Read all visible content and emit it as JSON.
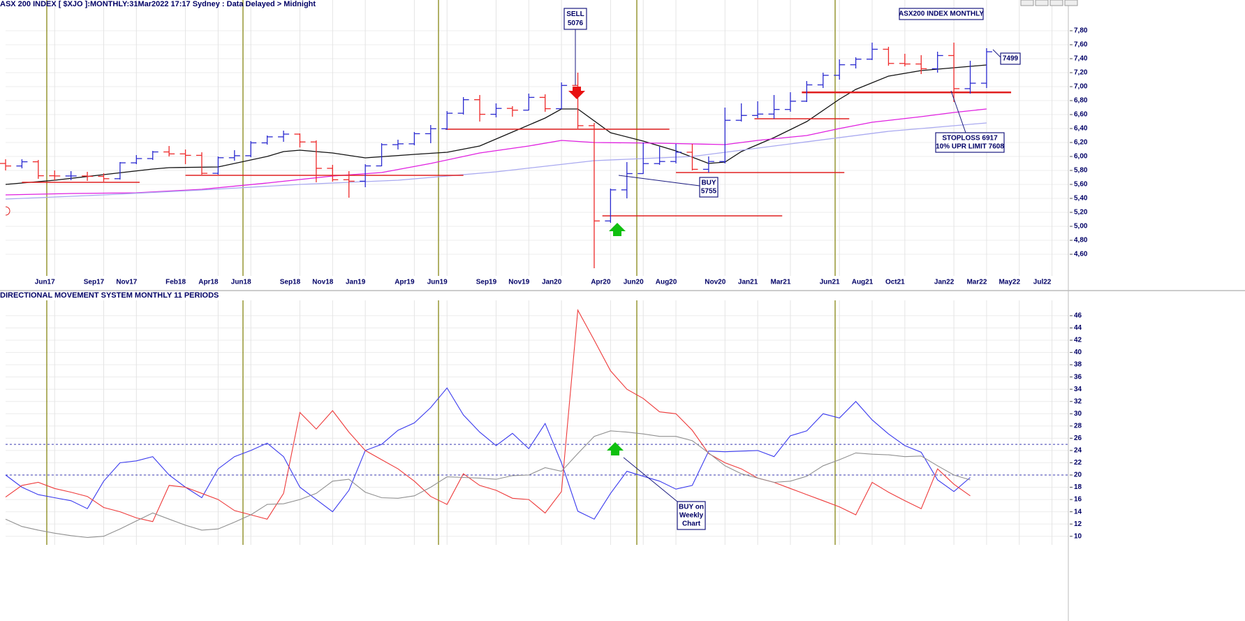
{
  "chart_data": [
    {
      "type": "ohlc",
      "title": "ASX 200 INDEX [ $XJO ]:MONTHLY:31Mar2022 17:17 Sydney : Data Delayed > Midnight",
      "up_color": "#2b2bd0",
      "down_color": "#ee2a2a",
      "open": [
        5900,
        5864,
        5924,
        5724,
        5721,
        5721,
        5715,
        5682,
        5909,
        5970,
        6065,
        6037,
        6016,
        5759,
        5982,
        6011,
        6195,
        6281,
        6320,
        6208,
        5830,
        5667,
        5646,
        5865,
        6169,
        6181,
        6326,
        6397,
        6619,
        6813,
        6604,
        6688,
        6663,
        6846,
        6684,
        7017,
        6441,
        5077,
        5522,
        5755,
        5898,
        5928,
        6061,
        5816,
        5928,
        6518,
        6587,
        6607,
        6673,
        6791,
        7025,
        7162,
        7313,
        7393,
        7535,
        7332,
        7324,
        7256,
        7445,
        6971,
        7049
      ],
      "high": [
        5960,
        5960,
        5950,
        5800,
        5790,
        5780,
        5760,
        5920,
        6020,
        6080,
        6150,
        6100,
        6060,
        6000,
        6090,
        6220,
        6300,
        6370,
        6330,
        6230,
        5880,
        5790,
        5890,
        6190,
        6240,
        6350,
        6450,
        6650,
        6850,
        6880,
        6760,
        6720,
        6900,
        6890,
        7060,
        7200,
        6480,
        5540,
        5920,
        6200,
        6140,
        6180,
        6180,
        6000,
        6700,
        6760,
        6790,
        6880,
        6920,
        7080,
        7200,
        7390,
        7420,
        7630,
        7570,
        7470,
        7450,
        7500,
        7630,
        7370,
        7550
      ],
      "low": [
        5800,
        5830,
        5680,
        5660,
        5660,
        5650,
        5640,
        5670,
        5890,
        5950,
        6000,
        5890,
        5740,
        5740,
        5940,
        5990,
        6170,
        6210,
        6130,
        5630,
        5640,
        5410,
        5560,
        5860,
        6100,
        6160,
        6190,
        6380,
        6600,
        6500,
        6560,
        6570,
        6660,
        6640,
        6680,
        6400,
        4400,
        5050,
        5400,
        5750,
        5880,
        5900,
        5800,
        5770,
        5900,
        6500,
        6550,
        6540,
        6640,
        6780,
        6980,
        7100,
        7260,
        7380,
        7300,
        7290,
        7180,
        7200,
        6780,
        6900,
        6980
      ],
      "close": [
        5864,
        5924,
        5724,
        5721,
        5721,
        5715,
        5682,
        5909,
        5970,
        6065,
        6037,
        6016,
        5759,
        5982,
        6011,
        6195,
        6281,
        6320,
        6208,
        5830,
        5667,
        5646,
        5865,
        6169,
        6181,
        6326,
        6397,
        6619,
        6813,
        6604,
        6688,
        6663,
        6846,
        6684,
        7017,
        6441,
        5077,
        5522,
        5755,
        5898,
        5928,
        6061,
        5816,
        5928,
        6518,
        6587,
        6607,
        6673,
        6791,
        7025,
        7162,
        7313,
        7393,
        7535,
        7332,
        7324,
        7256,
        7445,
        6971,
        7049,
        7499
      ],
      "averages": [
        {
          "color": "#111111",
          "x": [
            0,
            3,
            6,
            9,
            10,
            13,
            16,
            17,
            18,
            20,
            22,
            25,
            27,
            29,
            31,
            33,
            34,
            35,
            37,
            39,
            41,
            43,
            44,
            45,
            47,
            49,
            51,
            52,
            54,
            56,
            58,
            60
          ],
          "values": [
            5600,
            5660,
            5740,
            5820,
            5840,
            5850,
            6000,
            6070,
            6090,
            6050,
            5980,
            6030,
            6060,
            6150,
            6350,
            6550,
            6680,
            6680,
            6340,
            6220,
            6080,
            5900,
            5920,
            6070,
            6270,
            6500,
            6820,
            6960,
            7150,
            7230,
            7270,
            7310
          ]
        },
        {
          "color": "#e020e0",
          "x": [
            0,
            4,
            8,
            12,
            16,
            20,
            23,
            26,
            29,
            32,
            34,
            36,
            40,
            44,
            46,
            49,
            51,
            53,
            56,
            58,
            60
          ],
          "values": [
            5450,
            5470,
            5480,
            5530,
            5620,
            5720,
            5770,
            5900,
            6050,
            6150,
            6230,
            6200,
            6190,
            6170,
            6230,
            6300,
            6400,
            6490,
            6570,
            6630,
            6680
          ]
        },
        {
          "color": "#a9a9f0",
          "x": [
            0,
            6,
            12,
            18,
            24,
            30,
            36,
            42,
            48,
            54,
            60
          ],
          "values": [
            5390,
            5450,
            5520,
            5600,
            5660,
            5780,
            5940,
            6000,
            6180,
            6360,
            6480
          ]
        }
      ],
      "levels_color": "#e02020",
      "levels": [
        {
          "value": 5630,
          "x": [
            1,
            8.2
          ]
        },
        {
          "value": 5730,
          "x": [
            11,
            28
          ]
        },
        {
          "value": 6390,
          "x": [
            26.9,
            40.6
          ]
        },
        {
          "value": 5150,
          "x": [
            36.5,
            47.5
          ]
        },
        {
          "value": 5770,
          "x": [
            41,
            51.3
          ]
        },
        {
          "value": 6540,
          "x": [
            45.8,
            51.6
          ]
        },
        {
          "value": 6917,
          "x": [
            48.7,
            61.5
          ]
        }
      ],
      "annotations": [
        {
          "lines": [
            "SELL",
            "5076"
          ]
        },
        {
          "lines": [
            "BUY",
            "5755"
          ]
        },
        {
          "lines": [
            "STOPLOSS 6917",
            "10% UPR LIMIT 7608"
          ]
        },
        {
          "lines": [
            "7499"
          ]
        },
        {
          "lines": [
            "ASX200 INDEX MONTHLY"
          ]
        }
      ],
      "xlim": [
        0,
        65
      ],
      "xticks": [
        {
          "value": 3,
          "label": "Jun17"
        },
        {
          "value": 6,
          "label": "Sep17"
        },
        {
          "value": 8,
          "label": "Nov17"
        },
        {
          "value": 11,
          "label": "Feb18"
        },
        {
          "value": 13,
          "label": "Apr18"
        },
        {
          "value": 15,
          "label": "Jun18"
        },
        {
          "value": 18,
          "label": "Sep18"
        },
        {
          "value": 20,
          "label": "Nov18"
        },
        {
          "value": 22,
          "label": "Jan19"
        },
        {
          "value": 25,
          "label": "Apr19"
        },
        {
          "value": 27,
          "label": "Jun19"
        },
        {
          "value": 30,
          "label": "Sep19"
        },
        {
          "value": 32,
          "label": "Nov19"
        },
        {
          "value": 34,
          "label": "Jan20"
        },
        {
          "value": 37,
          "label": "Apr20"
        },
        {
          "value": 39,
          "label": "Jun20"
        },
        {
          "value": 41,
          "label": "Aug20"
        },
        {
          "value": 44,
          "label": "Nov20"
        },
        {
          "value": 46,
          "label": "Jan21"
        },
        {
          "value": 48,
          "label": "Mar21"
        },
        {
          "value": 51,
          "label": "Jun21"
        },
        {
          "value": 53,
          "label": "Aug21"
        },
        {
          "value": 55,
          "label": "Oct21"
        },
        {
          "value": 58,
          "label": "Jan22"
        },
        {
          "value": 60,
          "label": "Mar22"
        },
        {
          "value": 62,
          "label": "May22"
        },
        {
          "value": 64,
          "label": "Jul22"
        }
      ],
      "ylim": [
        4290,
        8240
      ],
      "yticks": [
        {
          "value": 4600,
          "label": "4,60"
        },
        {
          "value": 4800,
          "label": "4,80"
        },
        {
          "value": 5000,
          "label": "5,00"
        },
        {
          "value": 5200,
          "label": "5,20"
        },
        {
          "value": 5400,
          "label": "5,40"
        },
        {
          "value": 5600,
          "label": "5,60"
        },
        {
          "value": 5800,
          "label": "5,80"
        },
        {
          "value": 6000,
          "label": "6,00"
        },
        {
          "value": 6200,
          "label": "6,20"
        },
        {
          "value": 6400,
          "label": "6,40"
        },
        {
          "value": 6600,
          "label": "6,60"
        },
        {
          "value": 6800,
          "label": "6,80"
        },
        {
          "value": 7000,
          "label": "7,00"
        },
        {
          "value": 7200,
          "label": "7,20"
        },
        {
          "value": 7400,
          "label": "7,40"
        },
        {
          "value": 7600,
          "label": "7,60"
        },
        {
          "value": 7800,
          "label": "7,80"
        }
      ],
      "grid": true
    },
    {
      "type": "line",
      "title": "DIRECTIONAL MOVEMENT SYSTEM MONTHLY 11 PERIODS",
      "series": [
        {
          "color": "#3a3aee",
          "values": [
            20,
            18,
            16.8,
            16.3,
            15.8,
            14.5,
            19,
            22,
            22.3,
            23,
            20,
            18,
            16.3,
            21,
            23,
            24,
            25.2,
            23,
            18,
            16,
            14,
            17.5,
            24,
            25,
            27.3,
            28.5,
            31,
            34.2,
            29.8,
            27,
            24.8,
            26.8,
            24.3,
            28.4,
            22,
            14.1,
            12.8,
            17,
            20.6,
            19.8,
            19,
            17.7,
            18.3,
            23.9,
            23.8,
            23.9,
            24,
            23,
            26.4,
            27.2,
            30,
            29.3,
            32,
            29,
            26.7,
            24.8,
            23.7,
            19.2,
            17.3,
            19.6
          ]
        },
        {
          "color": "#ee3a3a",
          "values": [
            16.4,
            18.3,
            18.8,
            17.8,
            17.2,
            16.5,
            14.7,
            14,
            13,
            12.4,
            18.3,
            18,
            17,
            16,
            14.2,
            13.5,
            12.8,
            17,
            30.2,
            27.5,
            30.5,
            27,
            24,
            22.5,
            21,
            19,
            16.5,
            15.2,
            20.2,
            18.3,
            17.5,
            16.2,
            16,
            13.8,
            17.3,
            46.9,
            42,
            37,
            34,
            32.5,
            30.3,
            30,
            27.3,
            23.5,
            22,
            21,
            19.5,
            18.8,
            17.8,
            16.8,
            15.8,
            14.8,
            13.5,
            18.8,
            17.2,
            15.8,
            14.5,
            21,
            18.5,
            16.6
          ]
        },
        {
          "color": "#909090",
          "values": [
            12.8,
            11.6,
            11,
            10.5,
            10.1,
            9.8,
            10,
            11.2,
            12.5,
            13.8,
            12.8,
            11.8,
            11,
            11.2,
            12.3,
            13.5,
            15.2,
            15.3,
            16,
            17,
            19,
            19.3,
            17.2,
            16.3,
            16.2,
            16.6,
            18,
            19.7,
            19.6,
            19.5,
            19.3,
            19.9,
            20,
            21.2,
            20.6,
            23.5,
            26.3,
            27.2,
            27,
            26.7,
            26.3,
            26.3,
            25.6,
            23.6,
            21.5,
            20.2,
            19.5,
            18.8,
            19,
            19.8,
            21.5,
            22.5,
            23.6,
            23.4,
            23.3,
            23,
            23.1,
            21.5,
            20,
            19.2
          ]
        }
      ],
      "reference_lines": [
        25,
        20
      ],
      "annotations": [
        {
          "lines": [
            "BUY on",
            "Weekly",
            "Chart"
          ]
        }
      ],
      "xlim": [
        0,
        65
      ],
      "ylim": [
        8.6,
        48.5
      ],
      "yticks": [
        10,
        12,
        14,
        16,
        18,
        20,
        22,
        24,
        26,
        28,
        30,
        32,
        34,
        36,
        38,
        40,
        42,
        44,
        46
      ],
      "grid": true
    }
  ]
}
